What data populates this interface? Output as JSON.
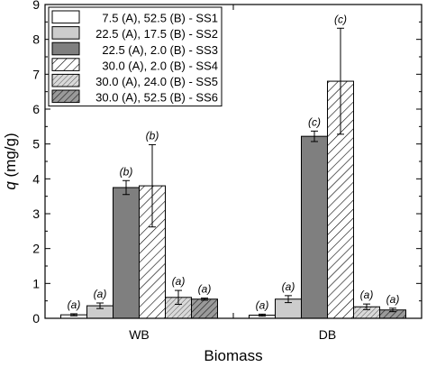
{
  "chart_data": {
    "type": "bar",
    "xlabel": "Biomass",
    "ylabel_var": "q",
    "ylabel_unit": " (mg/g)",
    "ylim": [
      0,
      9
    ],
    "yticks": [
      0,
      1,
      2,
      3,
      4,
      5,
      6,
      7,
      8,
      9
    ],
    "categories": [
      "WB",
      "DB"
    ],
    "series": [
      {
        "name": "7.5 (A), 52.5 (B) - SS1",
        "values": [
          0.1,
          0.09
        ],
        "errors": [
          0.03,
          0.03
        ],
        "labels": [
          "(a)",
          "(a)"
        ],
        "fill": "#ffffff",
        "pattern": "none"
      },
      {
        "name": "22.5 (A), 17.5 (B) - SS2",
        "values": [
          0.36,
          0.55
        ],
        "errors": [
          0.08,
          0.1
        ],
        "labels": [
          "(a)",
          "(a)"
        ],
        "fill": "#cccccc",
        "pattern": "none"
      },
      {
        "name": "22.5 (A), 2.0 (B) - SS3",
        "values": [
          3.75,
          5.22
        ],
        "errors": [
          0.2,
          0.15
        ],
        "labels": [
          "(b)",
          "(c)"
        ],
        "fill": "#7f7f7f",
        "pattern": "none"
      },
      {
        "name": "30.0 (A), 2.0 (B) - SS4",
        "values": [
          3.8,
          6.8
        ],
        "errors": [
          1.18,
          1.52
        ],
        "labels": [
          "(b)",
          "(c)"
        ],
        "fill": "#ffffff",
        "pattern": "diag-sparse"
      },
      {
        "name": "30.0 (A), 24.0 (B) - SS5",
        "values": [
          0.6,
          0.33
        ],
        "errors": [
          0.2,
          0.08
        ],
        "labels": [
          "(a)",
          "(a)"
        ],
        "fill": "#d9d9d9",
        "pattern": "diag-dense"
      },
      {
        "name": "30.0 (A), 52.5 (B) - SS6",
        "values": [
          0.55,
          0.24
        ],
        "errors": [
          0.03,
          0.05
        ],
        "labels": [
          "(a)",
          "(a)"
        ],
        "fill": "#8c8c8c",
        "pattern": "diag-dark"
      }
    ],
    "legend_position": "top-left",
    "grid": false
  }
}
